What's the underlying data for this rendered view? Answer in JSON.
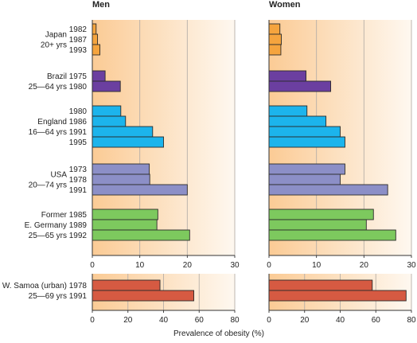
{
  "chart_data": {
    "type": "bar",
    "orientation": "horizontal",
    "panels": [
      "Men",
      "Women"
    ],
    "xlabel": "Prevalence of obesity (%)",
    "top_xlim": [
      0,
      30
    ],
    "top_ticks": [
      "0",
      "10",
      "20",
      "30"
    ],
    "bottom_xlim": [
      0,
      80
    ],
    "bottom_ticks": [
      "0",
      "20",
      "40",
      "60",
      "80"
    ],
    "groups": [
      {
        "section": "top",
        "label_lines": [
          "Japan",
          "20+ yrs"
        ],
        "color": "#F5A43E",
        "years": [
          "1982",
          "1987",
          "1993"
        ],
        "men": [
          0.8,
          1.1,
          1.6
        ],
        "women": [
          2.3,
          2.6,
          2.5
        ]
      },
      {
        "section": "top",
        "label_lines": [
          "Brazil",
          "25—64 yrs"
        ],
        "color": "#6B3FA0",
        "years": [
          "1975",
          "1980"
        ],
        "men": [
          2.7,
          5.9
        ],
        "women": [
          7.8,
          13.0
        ]
      },
      {
        "section": "top",
        "label_lines": [
          "England",
          "16—64 yrs"
        ],
        "color": "#1CB4EC",
        "years": [
          "1980",
          "1986",
          "1991",
          "1995"
        ],
        "men": [
          6.0,
          7.0,
          12.7,
          15.0
        ],
        "women": [
          8.0,
          12.0,
          15.0,
          16.0
        ]
      },
      {
        "section": "top",
        "label_lines": [
          "USA",
          "20—74 yrs"
        ],
        "color": "#8C8FC7",
        "years": [
          "1973",
          "1978",
          "1991"
        ],
        "men": [
          12.0,
          12.1,
          20.0
        ],
        "women": [
          16.0,
          15.0,
          25.0
        ]
      },
      {
        "section": "top",
        "label_lines": [
          "Former",
          "E. Germany",
          "25—65 yrs"
        ],
        "color": "#7DC95E",
        "years": [
          "1985",
          "1989",
          "1992"
        ],
        "men": [
          13.8,
          13.6,
          20.5
        ],
        "women": [
          22.0,
          20.5,
          26.7
        ]
      },
      {
        "section": "bottom",
        "label_lines": [
          "W. Samoa (urban)",
          "25—69 yrs"
        ],
        "color": "#D65A42",
        "years": [
          "1978",
          "1991"
        ],
        "men": [
          38.0,
          57.0
        ],
        "women": [
          58.0,
          77.0
        ]
      }
    ]
  }
}
